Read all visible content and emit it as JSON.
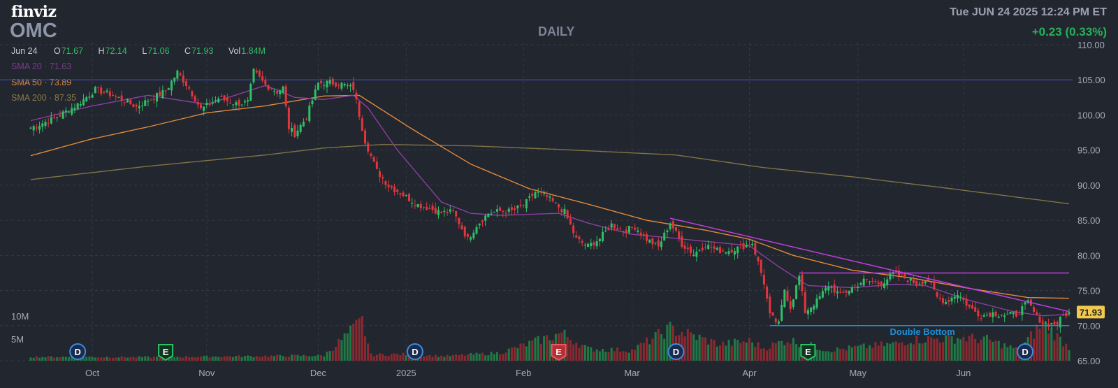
{
  "header": {
    "logo": "finviz",
    "ticker": "OMC",
    "period": "DAILY",
    "datetime": "Tue JUN 24 2025 12:24 PM ET",
    "change": "+0.23 (0.33%)"
  },
  "ohlc": {
    "date": "Jun 24",
    "open_label": "O",
    "open": "71.67",
    "high_label": "H",
    "high": "72.14",
    "low_label": "L",
    "low": "71.06",
    "close_label": "C",
    "close": "71.93",
    "vol_label": "Vol",
    "vol": "1.84M"
  },
  "indicators": {
    "sma20": "SMA 20 · 71.63",
    "sma50": "SMA 50 · 73.89",
    "sma200": "SMA 200 · 87.35"
  },
  "colors": {
    "background": "#22262f",
    "up": "#2fbf67",
    "down": "#e0363d",
    "sma20": "#8b3fa3",
    "sma50": "#e08a3b",
    "sma200": "#7f7347",
    "resistance": "#c03ee0",
    "support": "#1e90d8",
    "hline": "#3b3f8f"
  },
  "chart_data": {
    "type": "candlestick",
    "y_range": [
      65,
      110
    ],
    "y_ticks": [
      "110.00",
      "105.00",
      "100.00",
      "95.00",
      "90.00",
      "85.00",
      "80.00",
      "75.00",
      "70.00",
      "65.00"
    ],
    "y_tick_values": [
      110,
      105,
      100,
      95,
      90,
      85,
      80,
      75,
      70,
      65
    ],
    "x_ticks": [
      "Oct",
      "Nov",
      "Dec",
      "2025",
      "Feb",
      "Mar",
      "Apr",
      "May",
      "Jun"
    ],
    "x_tick_bars": [
      21,
      60,
      98,
      128,
      168,
      205,
      245,
      282,
      318
    ],
    "volume_ticks": [
      "10M",
      "5M"
    ],
    "last_price": "71.93",
    "pattern_label": "Double Bottom",
    "horizontal_level": 105,
    "support_level": 70,
    "resistance_level": 77.5,
    "trendline": [
      {
        "bar": 218,
        "y": 85.3
      },
      {
        "bar": 354,
        "y": 72.0
      }
    ],
    "events": [
      {
        "bar": 16,
        "label": "D",
        "type": "dividend"
      },
      {
        "bar": 46,
        "label": "E",
        "type": "earnings-good"
      },
      {
        "bar": 131,
        "label": "D",
        "type": "dividend"
      },
      {
        "bar": 180,
        "label": "E",
        "type": "earnings-bad"
      },
      {
        "bar": 220,
        "label": "D",
        "type": "dividend"
      },
      {
        "bar": 265,
        "label": "E",
        "type": "earnings-good"
      },
      {
        "bar": 339,
        "label": "D",
        "type": "dividend"
      }
    ],
    "bar_count": 355,
    "close_anchors": [
      [
        0,
        98.2
      ],
      [
        8,
        99.5
      ],
      [
        16,
        101.5
      ],
      [
        22,
        103.6
      ],
      [
        28,
        102.8
      ],
      [
        36,
        101.2
      ],
      [
        46,
        103.4
      ],
      [
        50,
        106.1
      ],
      [
        54,
        103.8
      ],
      [
        58,
        100.8
      ],
      [
        64,
        102.4
      ],
      [
        70,
        101.6
      ],
      [
        74,
        101.8
      ],
      [
        76,
        106.2
      ],
      [
        80,
        104.3
      ],
      [
        84,
        103.3
      ],
      [
        86,
        103.9
      ],
      [
        88,
        98.2
      ],
      [
        90,
        97.3
      ],
      [
        94,
        99.7
      ],
      [
        98,
        104.5
      ],
      [
        102,
        104.6
      ],
      [
        106,
        104.4
      ],
      [
        110,
        103.8
      ],
      [
        114,
        96.3
      ],
      [
        118,
        92.0
      ],
      [
        122,
        89.9
      ],
      [
        126,
        88.9
      ],
      [
        132,
        87.2
      ],
      [
        136,
        86.7
      ],
      [
        140,
        86.1
      ],
      [
        144,
        86.2
      ],
      [
        149,
        82.3
      ],
      [
        152,
        84.3
      ],
      [
        156,
        86.0
      ],
      [
        160,
        86.3
      ],
      [
        164,
        86.3
      ],
      [
        168,
        87.1
      ],
      [
        172,
        89.0
      ],
      [
        176,
        88.3
      ],
      [
        182,
        86.2
      ],
      [
        186,
        82.3
      ],
      [
        190,
        81.3
      ],
      [
        194,
        82.4
      ],
      [
        198,
        84.4
      ],
      [
        202,
        83.5
      ],
      [
        206,
        84.1
      ],
      [
        210,
        82.3
      ],
      [
        214,
        81.2
      ],
      [
        218,
        84.7
      ],
      [
        222,
        81.6
      ],
      [
        226,
        80.2
      ],
      [
        230,
        81.5
      ],
      [
        234,
        80.7
      ],
      [
        238,
        80.7
      ],
      [
        242,
        81.2
      ],
      [
        246,
        81.8
      ],
      [
        250,
        76.1
      ],
      [
        252,
        71.4
      ],
      [
        255,
        70.2
      ],
      [
        257,
        75.2
      ],
      [
        259,
        72.6
      ],
      [
        262,
        77.0
      ],
      [
        264,
        72.0
      ],
      [
        268,
        73.5
      ],
      [
        272,
        75.8
      ],
      [
        276,
        74.3
      ],
      [
        280,
        75.4
      ],
      [
        284,
        76.4
      ],
      [
        290,
        76.0
      ],
      [
        294,
        77.4
      ],
      [
        298,
        76.8
      ],
      [
        302,
        76.0
      ],
      [
        306,
        76.6
      ],
      [
        309,
        74.0
      ],
      [
        312,
        73.4
      ],
      [
        316,
        74.6
      ],
      [
        320,
        72.6
      ],
      [
        324,
        71.4
      ],
      [
        328,
        71.8
      ],
      [
        332,
        71.5
      ],
      [
        336,
        71.6
      ],
      [
        340,
        73.3
      ],
      [
        343,
        71.2
      ],
      [
        346,
        70.2
      ],
      [
        350,
        70.3
      ],
      [
        352,
        71.4
      ],
      [
        354,
        71.93
      ]
    ],
    "volume_anchors": [
      [
        0,
        0.6
      ],
      [
        40,
        0.55
      ],
      [
        100,
        0.8
      ],
      [
        113,
        6.0
      ],
      [
        116,
        0.9
      ],
      [
        126,
        1.0
      ],
      [
        141,
        0.7
      ],
      [
        160,
        1.2
      ],
      [
        181,
        4.2
      ],
      [
        190,
        1.8
      ],
      [
        205,
        1.6
      ],
      [
        218,
        4.9
      ],
      [
        235,
        2.5
      ],
      [
        245,
        3.0
      ],
      [
        250,
        1.9
      ],
      [
        258,
        3.2
      ],
      [
        272,
        1.6
      ],
      [
        295,
        2.6
      ],
      [
        300,
        3.2
      ],
      [
        318,
        3.5
      ],
      [
        326,
        3.2
      ],
      [
        337,
        1.6
      ],
      [
        345,
        5.8
      ],
      [
        354,
        2.0
      ]
    ],
    "sma_anchors": {
      "sma20": [
        [
          0,
          99.2
        ],
        [
          20,
          101.2
        ],
        [
          40,
          102.8
        ],
        [
          60,
          101.5
        ],
        [
          80,
          104.2
        ],
        [
          90,
          102.5
        ],
        [
          100,
          102.2
        ],
        [
          110,
          102.8
        ],
        [
          115,
          101.0
        ],
        [
          125,
          95.0
        ],
        [
          140,
          87.6
        ],
        [
          150,
          86.0
        ],
        [
          160,
          85.7
        ],
        [
          180,
          86.0
        ],
        [
          190,
          84.6
        ],
        [
          205,
          83.0
        ],
        [
          218,
          82.5
        ],
        [
          230,
          82.0
        ],
        [
          245,
          81.4
        ],
        [
          255,
          78.4
        ],
        [
          265,
          75.7
        ],
        [
          280,
          75.4
        ],
        [
          295,
          75.9
        ],
        [
          305,
          75.7
        ],
        [
          320,
          73.6
        ],
        [
          335,
          72.0
        ],
        [
          345,
          71.4
        ],
        [
          354,
          71.63
        ]
      ],
      "sma50": [
        [
          0,
          94.2
        ],
        [
          20,
          96.5
        ],
        [
          40,
          98.3
        ],
        [
          60,
          100.3
        ],
        [
          80,
          101.3
        ],
        [
          100,
          102.7
        ],
        [
          112,
          102.8
        ],
        [
          130,
          98.0
        ],
        [
          150,
          93.0
        ],
        [
          170,
          89.5
        ],
        [
          190,
          87.3
        ],
        [
          210,
          85.0
        ],
        [
          230,
          83.6
        ],
        [
          245,
          82.3
        ],
        [
          260,
          80.0
        ],
        [
          280,
          77.9
        ],
        [
          300,
          76.8
        ],
        [
          320,
          75.3
        ],
        [
          340,
          74.0
        ],
        [
          354,
          73.89
        ]
      ],
      "sma200": [
        [
          0,
          90.8
        ],
        [
          40,
          92.7
        ],
        [
          80,
          94.3
        ],
        [
          100,
          95.3
        ],
        [
          120,
          95.8
        ],
        [
          150,
          95.6
        ],
        [
          180,
          95.1
        ],
        [
          220,
          94.3
        ],
        [
          250,
          92.5
        ],
        [
          280,
          91.2
        ],
        [
          310,
          89.7
        ],
        [
          354,
          87.35
        ]
      ]
    }
  }
}
